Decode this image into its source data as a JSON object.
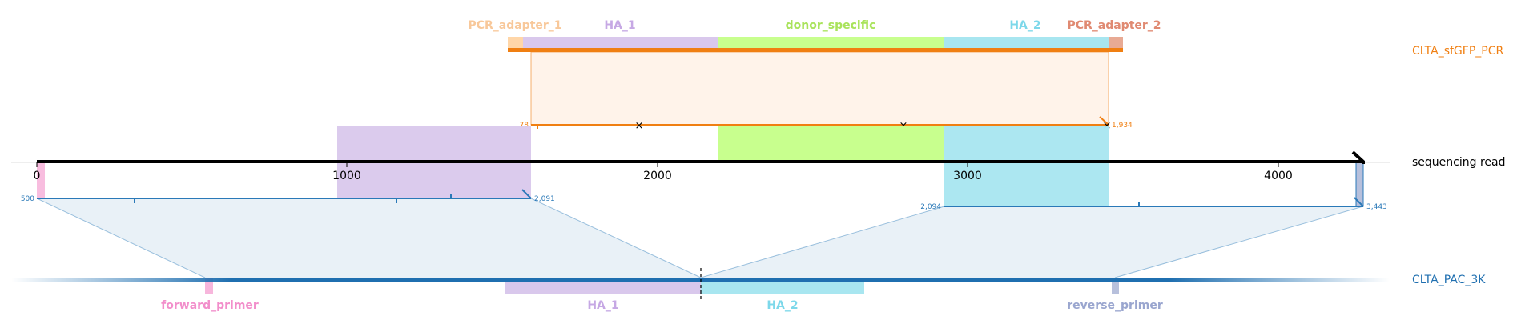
{
  "colors": {
    "pcr_adapter_1": "#ffd6a8",
    "pcr_adapter_1_text": "#f8c89a",
    "ha_1": "#d9c8ec",
    "ha_1_text": "#c6a8e4",
    "donor_specific": "#c8ff8e",
    "donor_specific_text": "#a9e35b",
    "ha_2": "#a8e6f0",
    "ha_2_text": "#7dd8ea",
    "pcr_adapter_2": "#e8aa94",
    "pcr_adapter_2_text": "#e08a72",
    "forward_primer": "#f7b6dc",
    "forward_primer_text": "#f28ecb",
    "reverse_primer": "#b7c0dc",
    "reverse_primer_text": "#9aa6cf",
    "pcr_track": "#f07f12",
    "pcr_fill": "#fff3ea",
    "pac_track": "#1f6fb0",
    "map_line": "#2a79b8",
    "map_fill": "#e9f1f7"
  },
  "tracks": {
    "pcr": {
      "label": "CLTA_sfGFP_PCR"
    },
    "read": {
      "label": "sequencing read"
    },
    "pac": {
      "label": "CLTA_PAC_3K"
    }
  },
  "pcr_features": [
    {
      "key": "pcr_adapter_1",
      "label": "PCR_adapter_1"
    },
    {
      "key": "ha_1",
      "label": "HA_1"
    },
    {
      "key": "donor_specific",
      "label": "donor_specific"
    },
    {
      "key": "ha_2",
      "label": "HA_2"
    },
    {
      "key": "pcr_adapter_2",
      "label": "PCR_adapter_2"
    }
  ],
  "pac_features": [
    {
      "key": "forward_primer",
      "label": "forward_primer"
    },
    {
      "key": "ha_1",
      "label": "HA_1"
    },
    {
      "key": "ha_2",
      "label": "HA_2"
    },
    {
      "key": "reverse_primer",
      "label": "reverse_primer"
    }
  ],
  "read_axis": {
    "min": 0,
    "max": 4300,
    "ticks": [
      {
        "value": 0,
        "label": "0"
      },
      {
        "value": 1000,
        "label": "1000"
      },
      {
        "value": 2000,
        "label": "2000"
      },
      {
        "value": 3000,
        "label": "3000"
      },
      {
        "value": 4000,
        "label": "4000"
      }
    ]
  },
  "read_features": [
    {
      "key": "forward_primer",
      "start": 0,
      "end": 25
    },
    {
      "key": "ha_1",
      "start": 970,
      "end": 1600
    },
    {
      "key": "donor_specific",
      "start": 2200,
      "end": 2920
    },
    {
      "key": "ha_2",
      "start": 2920,
      "end": 3450
    },
    {
      "key": "reverse_primer",
      "start": 4275,
      "end": 4300
    }
  ],
  "alignments": [
    {
      "target": "pcr",
      "read_start": 1600,
      "read_end": 3450,
      "target_start_label": "78",
      "target_end_label": "1,934",
      "mismatches": [
        1940,
        2790,
        3440
      ]
    },
    {
      "target": "pac",
      "read_start": 0,
      "read_end": 1600,
      "target_start_label": "500",
      "target_end_label": "2,091",
      "mismatches": []
    },
    {
      "target": "pac",
      "read_start": 2920,
      "read_end": 4275,
      "target_start_label": "2,094",
      "target_end_label": "3,443",
      "mismatches": []
    }
  ]
}
